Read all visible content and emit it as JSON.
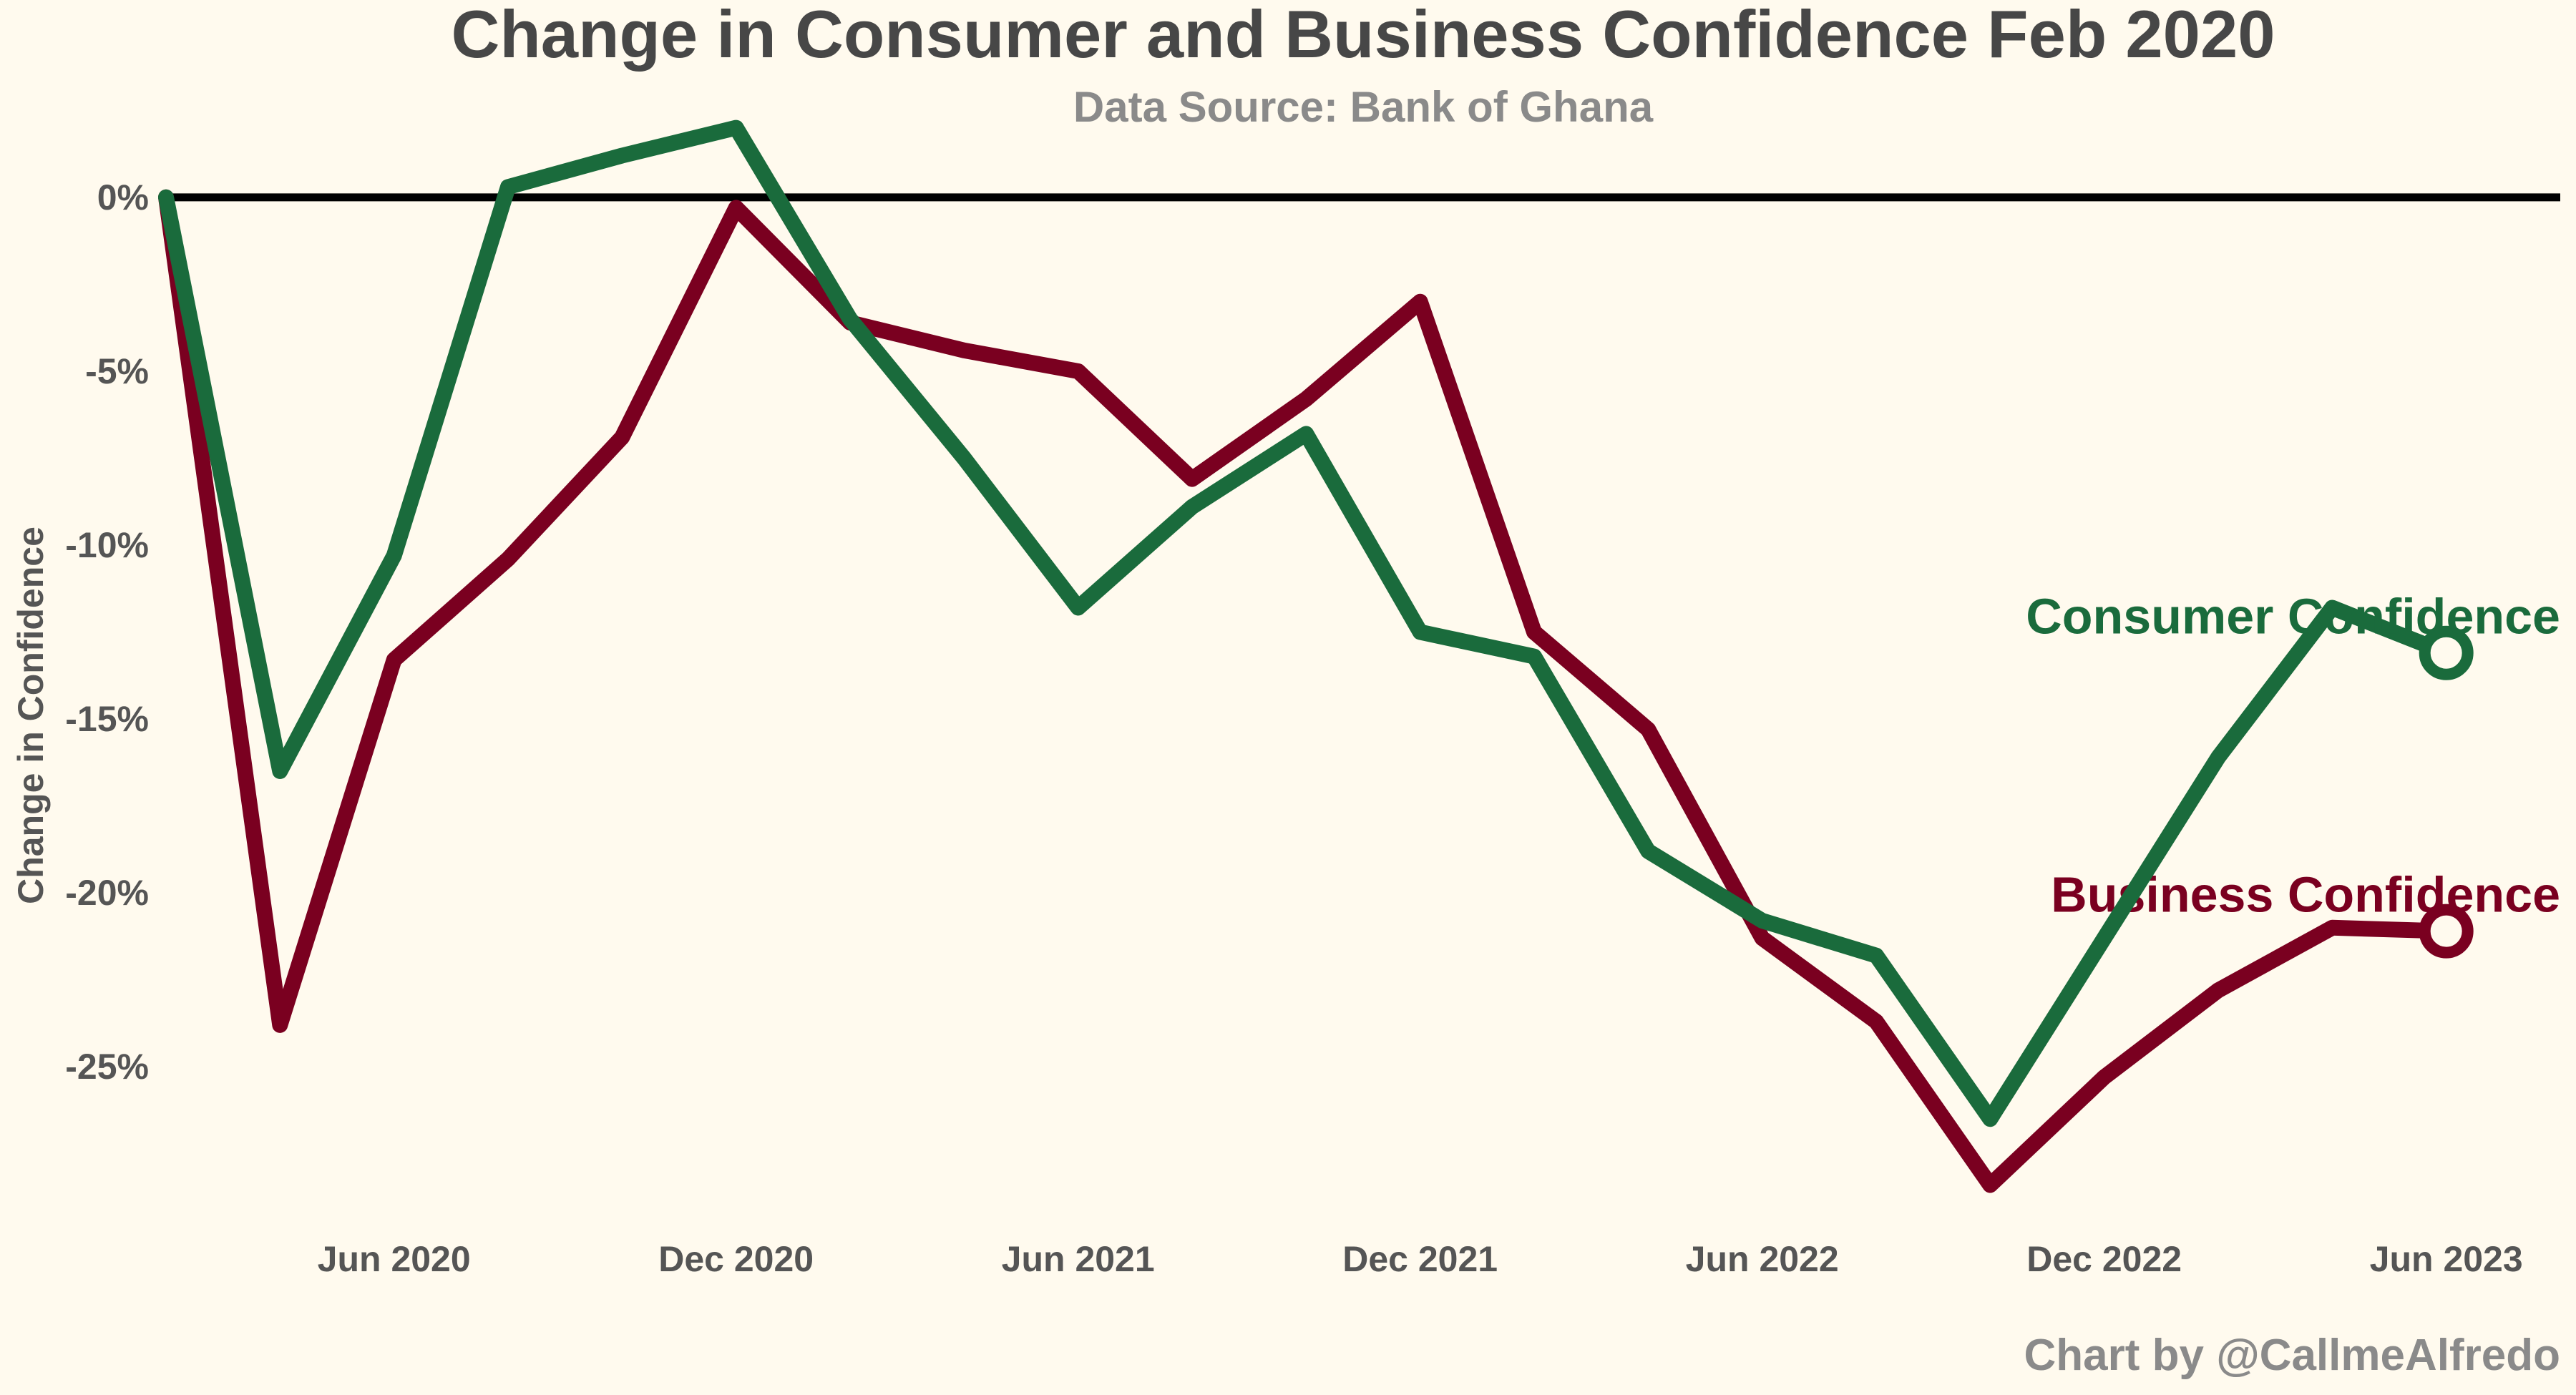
{
  "chart_data": {
    "type": "line",
    "title": "Change in Consumer and Business Confidence Feb 2020",
    "subtitle": "Data Source: Bank of Ghana",
    "ylabel": "Change in Confidence",
    "xlabel": "",
    "credit": "Chart by @CallmeAlfredo",
    "x": [
      "2020-02",
      "2020-04",
      "2020-06",
      "2020-08",
      "2020-10",
      "2020-12",
      "2021-02",
      "2021-04",
      "2021-06",
      "2021-08",
      "2021-10",
      "2021-12",
      "2022-02",
      "2022-04",
      "2022-06",
      "2022-08",
      "2022-10",
      "2022-12",
      "2023-02",
      "2023-04",
      "2023-06"
    ],
    "xlim": [
      "2020-02",
      "2023-08"
    ],
    "ylim": [
      -29.5,
      3
    ],
    "y_ticks": [
      0,
      -5,
      -10,
      -15,
      -20,
      -25
    ],
    "y_tick_labels": [
      "0%",
      "-5%",
      "-10%",
      "-15%",
      "-20%",
      "-25%"
    ],
    "x_ticks": [
      "2020-06",
      "2020-12",
      "2021-06",
      "2021-12",
      "2022-06",
      "2022-12",
      "2023-06"
    ],
    "x_tick_labels": [
      "Jun 2020",
      "Dec 2020",
      "Jun 2021",
      "Dec 2021",
      "Jun 2022",
      "Dec 2022",
      "Jun 2023"
    ],
    "reference_line": 0,
    "grid": false,
    "series": [
      {
        "name": "Business Confidence",
        "color": "#7a0020",
        "values": [
          0,
          -23.8,
          -13.3,
          -10.4,
          -6.9,
          -0.3,
          -3.6,
          -4.4,
          -5.0,
          -8.1,
          -5.8,
          -3.0,
          -12.5,
          -15.3,
          -21.3,
          -23.7,
          -28.4,
          -25.3,
          -22.8,
          -21.0,
          -21.1
        ]
      },
      {
        "name": "Consumer Confidence",
        "color": "#1a6b3c",
        "values": [
          0,
          -16.5,
          -10.3,
          0.3,
          1.2,
          2.0,
          -3.5,
          -7.5,
          -11.8,
          -8.9,
          -6.8,
          -12.5,
          -13.2,
          -18.8,
          -20.8,
          -21.8,
          -26.5,
          -21.3,
          -16.1,
          -11.8,
          -13.1
        ]
      }
    ]
  }
}
